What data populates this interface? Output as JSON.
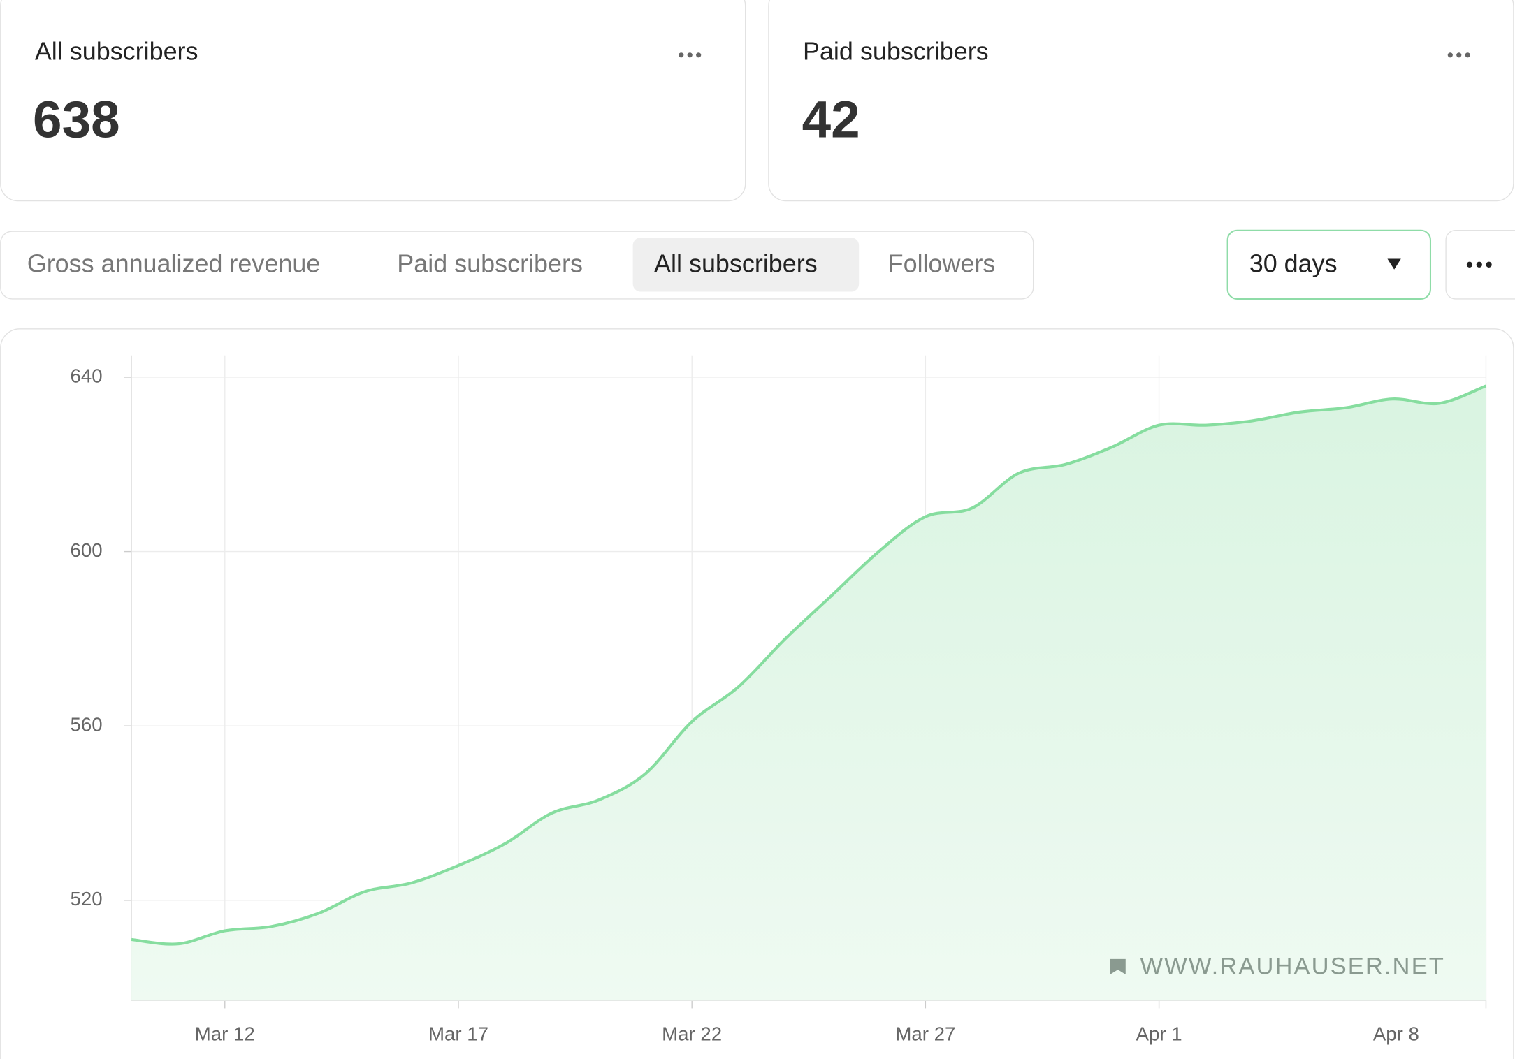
{
  "cards": [
    {
      "title": "All subscribers",
      "value": 638
    },
    {
      "title": "Paid subscribers",
      "value": 42
    }
  ],
  "tabs": [
    "Gross annualized revenue",
    "Paid subscribers",
    "All subscribers",
    "Followers"
  ],
  "active_tab": "All subscribers",
  "range": "30 days",
  "chart_data": {
    "type": "area",
    "x": [
      "Mar 10",
      "Mar 11",
      "Mar 12",
      "Mar 13",
      "Mar 14",
      "Mar 15",
      "Mar 16",
      "Mar 17",
      "Mar 18",
      "Mar 19",
      "Mar 20",
      "Mar 21",
      "Mar 22",
      "Mar 23",
      "Mar 24",
      "Mar 25",
      "Mar 26",
      "Mar 27",
      "Mar 28",
      "Mar 29",
      "Mar 30",
      "Mar 31",
      "Apr 1",
      "Apr 2",
      "Apr 3",
      "Apr 4",
      "Apr 5",
      "Apr 6",
      "Apr 7",
      "Apr 8"
    ],
    "xticks": [
      "Mar 12",
      "Mar 17",
      "Mar 22",
      "Mar 27",
      "Apr 1",
      "Apr 8"
    ],
    "series": [
      {
        "name": "All subscribers",
        "color": "#86dd9f",
        "values": [
          511,
          510,
          513,
          514,
          517,
          522,
          524,
          528,
          533,
          540,
          543,
          549,
          561,
          569,
          580,
          590,
          600,
          608,
          610,
          618,
          620,
          624,
          629,
          629,
          630,
          632,
          633,
          635,
          634,
          638
        ]
      }
    ],
    "ylim": [
      497,
      645
    ],
    "yticks": [
      520,
      560,
      600,
      640
    ],
    "grid": true,
    "watermark": "WWW.RAUHAUSER.NET"
  }
}
